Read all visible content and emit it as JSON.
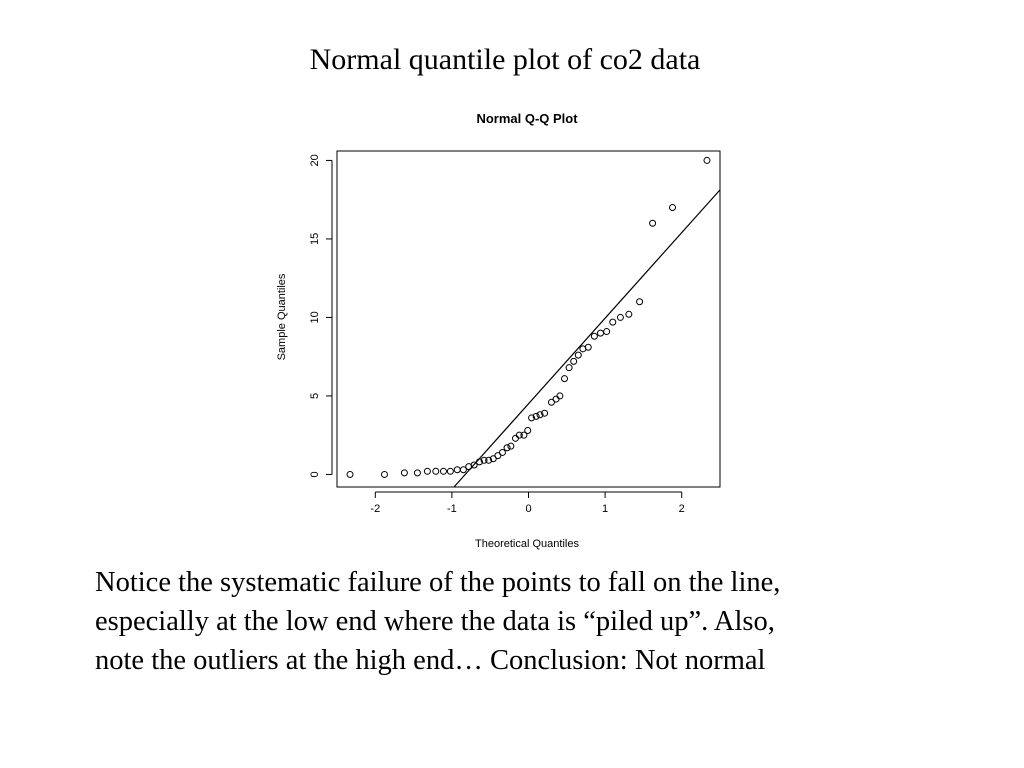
{
  "slide": {
    "title": "Normal quantile plot of co2 data",
    "caption_lines": [
      "Notice the systematic failure of the points to fall on the line,",
      "especially at the low end where the data is “piled up”.  Also,",
      "note the outliers at the high end…  Conclusion:  Not normal"
    ]
  },
  "chart_data": {
    "type": "scatter",
    "title": "Normal Q-Q Plot",
    "xlabel": "Theoretical Quantiles",
    "ylabel": "Sample Quantiles",
    "xlim": [
      -2.5,
      2.5
    ],
    "ylim": [
      -0.8,
      20.6
    ],
    "x_ticks": [
      -2,
      -1,
      0,
      1,
      2
    ],
    "x_tick_labels": [
      "-2",
      "-1",
      "0",
      "1",
      "2"
    ],
    "y_ticks": [
      0,
      5,
      10,
      15,
      20
    ],
    "y_tick_labels": [
      "0",
      "5",
      "10",
      "15",
      "20"
    ],
    "grid": false,
    "point_marker": "open circle",
    "reference_line": {
      "slope": 5.45,
      "intercept": 4.5
    },
    "points": [
      {
        "x": -2.33,
        "y": 0.0
      },
      {
        "x": -1.88,
        "y": 0.0
      },
      {
        "x": -1.62,
        "y": 0.1
      },
      {
        "x": -1.45,
        "y": 0.1
      },
      {
        "x": -1.32,
        "y": 0.2
      },
      {
        "x": -1.21,
        "y": 0.2
      },
      {
        "x": -1.11,
        "y": 0.2
      },
      {
        "x": -1.02,
        "y": 0.2
      },
      {
        "x": -0.93,
        "y": 0.3
      },
      {
        "x": -0.85,
        "y": 0.3
      },
      {
        "x": -0.78,
        "y": 0.5
      },
      {
        "x": -0.71,
        "y": 0.6
      },
      {
        "x": -0.64,
        "y": 0.8
      },
      {
        "x": -0.58,
        "y": 0.9
      },
      {
        "x": -0.52,
        "y": 0.9
      },
      {
        "x": -0.46,
        "y": 1.0
      },
      {
        "x": -0.4,
        "y": 1.2
      },
      {
        "x": -0.34,
        "y": 1.4
      },
      {
        "x": -0.28,
        "y": 1.7
      },
      {
        "x": -0.23,
        "y": 1.8
      },
      {
        "x": -0.17,
        "y": 2.3
      },
      {
        "x": -0.12,
        "y": 2.5
      },
      {
        "x": -0.06,
        "y": 2.5
      },
      {
        "x": -0.01,
        "y": 2.8
      },
      {
        "x": 0.04,
        "y": 3.6
      },
      {
        "x": 0.1,
        "y": 3.7
      },
      {
        "x": 0.15,
        "y": 3.8
      },
      {
        "x": 0.21,
        "y": 3.9
      },
      {
        "x": 0.3,
        "y": 4.6
      },
      {
        "x": 0.36,
        "y": 4.8
      },
      {
        "x": 0.41,
        "y": 5.0
      },
      {
        "x": 0.47,
        "y": 6.1
      },
      {
        "x": 0.53,
        "y": 6.8
      },
      {
        "x": 0.59,
        "y": 7.2
      },
      {
        "x": 0.65,
        "y": 7.6
      },
      {
        "x": 0.71,
        "y": 8.0
      },
      {
        "x": 0.78,
        "y": 8.1
      },
      {
        "x": 0.86,
        "y": 8.8
      },
      {
        "x": 0.94,
        "y": 9.0
      },
      {
        "x": 1.02,
        "y": 9.1
      },
      {
        "x": 1.1,
        "y": 9.7
      },
      {
        "x": 1.2,
        "y": 10.0
      },
      {
        "x": 1.31,
        "y": 10.2
      },
      {
        "x": 1.45,
        "y": 11.0
      },
      {
        "x": 1.62,
        "y": 16.0
      },
      {
        "x": 1.88,
        "y": 17.0
      },
      {
        "x": 2.33,
        "y": 20.0
      }
    ]
  }
}
